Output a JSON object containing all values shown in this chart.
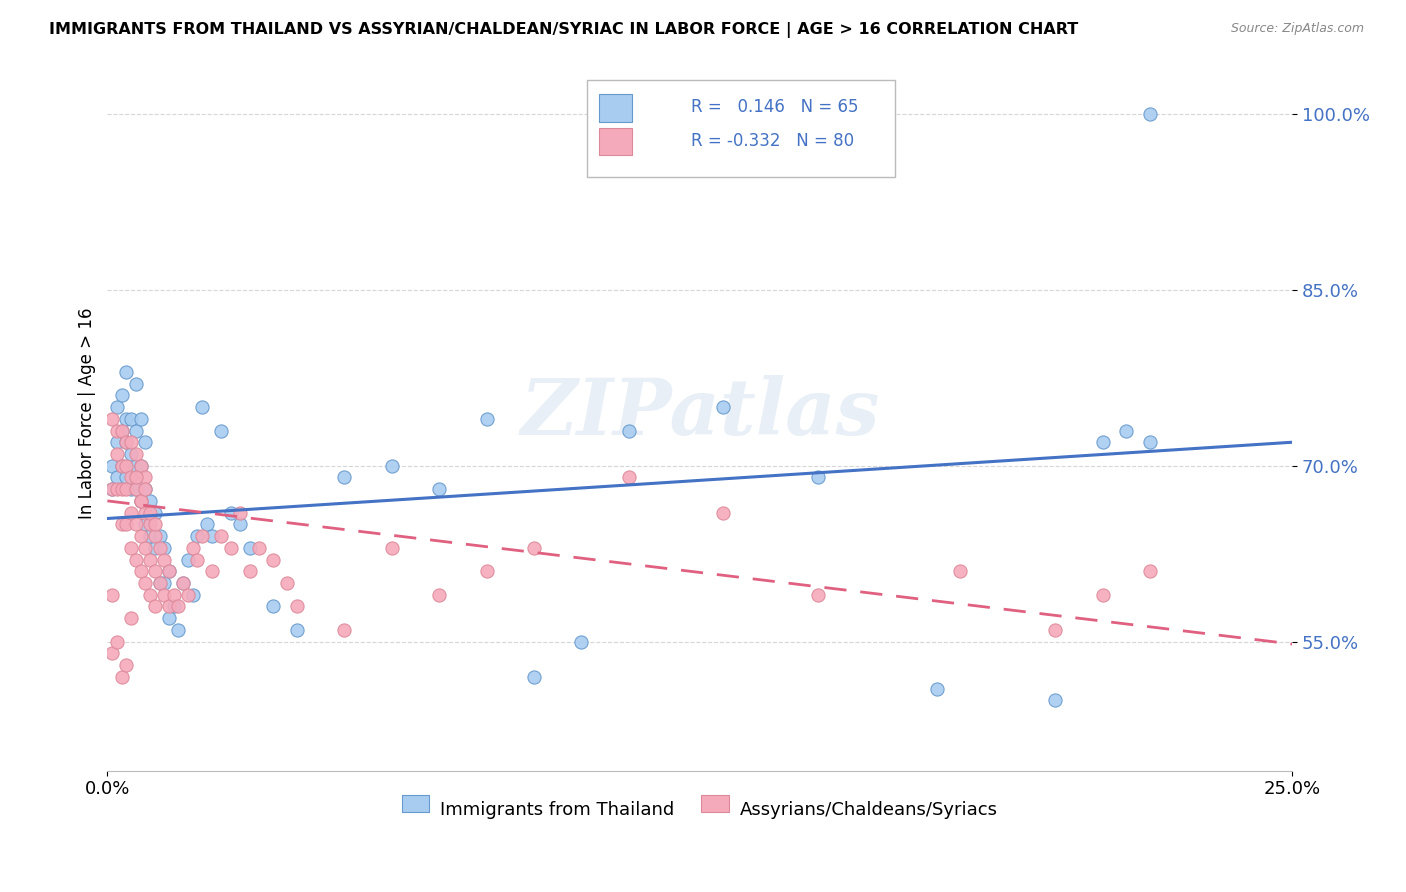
{
  "title": "IMMIGRANTS FROM THAILAND VS ASSYRIAN/CHALDEAN/SYRIAC IN LABOR FORCE | AGE > 16 CORRELATION CHART",
  "source": "Source: ZipAtlas.com",
  "ylabel": "In Labor Force | Age > 16",
  "xlim": [
    0.0,
    0.25
  ],
  "ylim": [
    0.44,
    1.05
  ],
  "ytick_labels": [
    "55.0%",
    "70.0%",
    "85.0%",
    "100.0%"
  ],
  "ytick_values": [
    0.55,
    0.7,
    0.85,
    1.0
  ],
  "xtick_labels": [
    "0.0%",
    "25.0%"
  ],
  "xtick_values": [
    0.0,
    0.25
  ],
  "watermark": "ZIPatlas",
  "legend_R_blue": "0.146",
  "legend_N_blue": "65",
  "legend_R_pink": "-0.332",
  "legend_N_pink": "80",
  "blue_color": "#A8CCF0",
  "pink_color": "#F5AABB",
  "blue_edge_color": "#6699CC",
  "pink_edge_color": "#DD8899",
  "trendline_blue": "#4472C4",
  "trendline_pink": "#E06080",
  "legend_label_blue": "Immigrants from Thailand",
  "legend_label_pink": "Assyrians/Chaldeans/Syriacs",
  "ytick_color": "#4472C4",
  "blue_scatter_x": [
    0.001,
    0.001,
    0.002,
    0.002,
    0.002,
    0.003,
    0.003,
    0.003,
    0.004,
    0.004,
    0.004,
    0.004,
    0.005,
    0.005,
    0.005,
    0.006,
    0.006,
    0.006,
    0.006,
    0.007,
    0.007,
    0.007,
    0.008,
    0.008,
    0.008,
    0.009,
    0.009,
    0.01,
    0.01,
    0.011,
    0.011,
    0.012,
    0.012,
    0.013,
    0.013,
    0.014,
    0.015,
    0.016,
    0.017,
    0.018,
    0.019,
    0.02,
    0.021,
    0.022,
    0.024,
    0.026,
    0.028,
    0.03,
    0.035,
    0.04,
    0.05,
    0.06,
    0.07,
    0.08,
    0.09,
    0.1,
    0.11,
    0.13,
    0.15,
    0.175,
    0.2,
    0.21,
    0.215,
    0.22,
    0.22
  ],
  "blue_scatter_y": [
    0.68,
    0.7,
    0.69,
    0.72,
    0.75,
    0.7,
    0.73,
    0.76,
    0.69,
    0.72,
    0.74,
    0.78,
    0.68,
    0.71,
    0.74,
    0.68,
    0.7,
    0.73,
    0.77,
    0.67,
    0.7,
    0.74,
    0.65,
    0.68,
    0.72,
    0.64,
    0.67,
    0.63,
    0.66,
    0.6,
    0.64,
    0.6,
    0.63,
    0.57,
    0.61,
    0.58,
    0.56,
    0.6,
    0.62,
    0.59,
    0.64,
    0.75,
    0.65,
    0.64,
    0.73,
    0.66,
    0.65,
    0.63,
    0.58,
    0.56,
    0.69,
    0.7,
    0.68,
    0.74,
    0.52,
    0.55,
    0.73,
    0.75,
    0.69,
    0.51,
    0.5,
    0.72,
    0.73,
    0.72,
    1.0
  ],
  "pink_scatter_x": [
    0.001,
    0.001,
    0.001,
    0.002,
    0.002,
    0.002,
    0.003,
    0.003,
    0.003,
    0.003,
    0.004,
    0.004,
    0.004,
    0.004,
    0.005,
    0.005,
    0.005,
    0.005,
    0.006,
    0.006,
    0.006,
    0.006,
    0.007,
    0.007,
    0.007,
    0.007,
    0.008,
    0.008,
    0.008,
    0.008,
    0.009,
    0.009,
    0.009,
    0.01,
    0.01,
    0.01,
    0.011,
    0.011,
    0.012,
    0.012,
    0.013,
    0.013,
    0.014,
    0.015,
    0.016,
    0.017,
    0.018,
    0.019,
    0.02,
    0.022,
    0.024,
    0.026,
    0.028,
    0.03,
    0.032,
    0.035,
    0.038,
    0.04,
    0.05,
    0.06,
    0.07,
    0.08,
    0.09,
    0.11,
    0.13,
    0.15,
    0.18,
    0.2,
    0.21,
    0.22,
    0.001,
    0.002,
    0.003,
    0.004,
    0.005,
    0.006,
    0.007,
    0.008,
    0.009,
    0.01
  ],
  "pink_scatter_y": [
    0.74,
    0.68,
    0.59,
    0.68,
    0.71,
    0.73,
    0.65,
    0.68,
    0.7,
    0.73,
    0.65,
    0.68,
    0.7,
    0.72,
    0.63,
    0.66,
    0.69,
    0.72,
    0.62,
    0.65,
    0.68,
    0.71,
    0.61,
    0.64,
    0.67,
    0.7,
    0.6,
    0.63,
    0.66,
    0.69,
    0.59,
    0.62,
    0.65,
    0.58,
    0.61,
    0.64,
    0.6,
    0.63,
    0.59,
    0.62,
    0.58,
    0.61,
    0.59,
    0.58,
    0.6,
    0.59,
    0.63,
    0.62,
    0.64,
    0.61,
    0.64,
    0.63,
    0.66,
    0.61,
    0.63,
    0.62,
    0.6,
    0.58,
    0.56,
    0.63,
    0.59,
    0.61,
    0.63,
    0.69,
    0.66,
    0.59,
    0.61,
    0.56,
    0.59,
    0.61,
    0.54,
    0.55,
    0.52,
    0.53,
    0.57,
    0.69,
    0.67,
    0.68,
    0.66,
    0.65
  ],
  "blue_trend_x0": 0.0,
  "blue_trend_y0": 0.655,
  "blue_trend_x1": 0.25,
  "blue_trend_y1": 0.72,
  "pink_trend_x0": 0.0,
  "pink_trend_y0": 0.67,
  "pink_trend_x1": 0.25,
  "pink_trend_y1": 0.548
}
